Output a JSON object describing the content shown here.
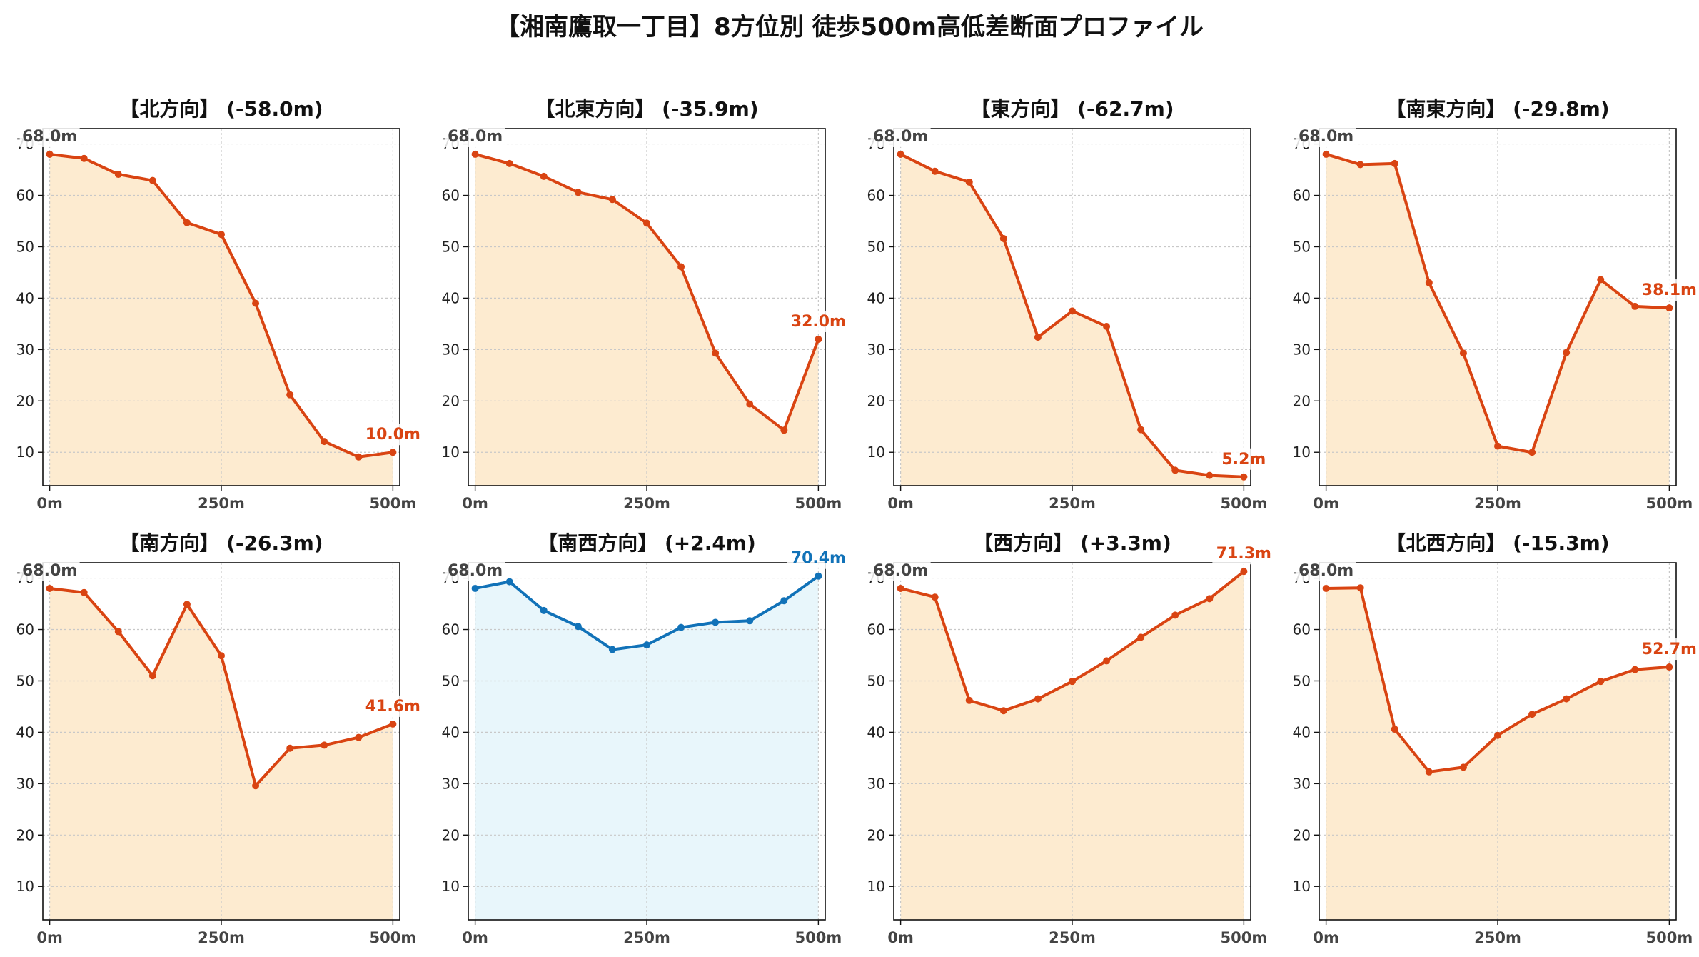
{
  "figure": {
    "title": "【湘南鷹取一丁目】8方位別 徒歩500m高低差断面プロファイル"
  },
  "colors": {
    "down": "#d94412",
    "down_fill": "#fdebd0",
    "up": "#1172b8",
    "up_fill": "#e8f6fb",
    "start_label": "#444444",
    "grid": "#c8c8c8"
  },
  "chart_data": [
    {
      "type": "area",
      "title": "【北方向】 (-58.0m)",
      "x": [
        0,
        50,
        100,
        150,
        200,
        250,
        300,
        350,
        400,
        450,
        500
      ],
      "y": [
        68.0,
        67.2,
        64.1,
        62.9,
        54.7,
        52.4,
        39.0,
        21.2,
        12.1,
        9.1,
        10.0
      ],
      "start_label": "68.0m",
      "end_label": "10.0m",
      "xlim": [
        -10,
        510
      ],
      "ylim": [
        3.5,
        73
      ],
      "xticks": [
        0,
        250,
        500
      ],
      "xtick_labels": [
        "0m",
        "250m",
        "500m"
      ],
      "yticks": [
        10,
        20,
        30,
        40,
        50,
        60,
        70
      ],
      "ytick_labels": [
        "10",
        "20",
        "30",
        "40",
        "50",
        "60",
        "70"
      ],
      "grid": true,
      "color_key": "down"
    },
    {
      "type": "area",
      "title": "【北東方向】 (-35.9m)",
      "x": [
        0,
        50,
        100,
        150,
        200,
        250,
        300,
        350,
        400,
        450,
        500
      ],
      "y": [
        68.0,
        66.2,
        63.7,
        60.6,
        59.2,
        54.6,
        46.1,
        29.3,
        19.4,
        14.3,
        32.0
      ],
      "start_label": "68.0m",
      "end_label": "32.0m",
      "xlim": [
        -10,
        510
      ],
      "ylim": [
        3.5,
        73
      ],
      "xticks": [
        0,
        250,
        500
      ],
      "xtick_labels": [
        "0m",
        "250m",
        "500m"
      ],
      "yticks": [
        10,
        20,
        30,
        40,
        50,
        60,
        70
      ],
      "ytick_labels": [
        "10",
        "20",
        "30",
        "40",
        "50",
        "60",
        "70"
      ],
      "grid": true,
      "color_key": "down"
    },
    {
      "type": "area",
      "title": "【東方向】 (-62.7m)",
      "x": [
        0,
        50,
        100,
        150,
        200,
        250,
        300,
        350,
        400,
        450,
        500
      ],
      "y": [
        68.0,
        64.7,
        62.6,
        51.6,
        32.4,
        37.5,
        34.5,
        14.4,
        6.5,
        5.5,
        5.2
      ],
      "start_label": "68.0m",
      "end_label": "5.2m",
      "xlim": [
        -10,
        510
      ],
      "ylim": [
        3.5,
        73
      ],
      "xticks": [
        0,
        250,
        500
      ],
      "xtick_labels": [
        "0m",
        "250m",
        "500m"
      ],
      "yticks": [
        10,
        20,
        30,
        40,
        50,
        60,
        70
      ],
      "ytick_labels": [
        "10",
        "20",
        "30",
        "40",
        "50",
        "60",
        "70"
      ],
      "grid": true,
      "color_key": "down"
    },
    {
      "type": "area",
      "title": "【南東方向】 (-29.8m)",
      "x": [
        0,
        50,
        100,
        150,
        200,
        250,
        300,
        350,
        400,
        450,
        500
      ],
      "y": [
        68.0,
        66.0,
        66.2,
        43.0,
        29.3,
        11.2,
        10.0,
        29.4,
        43.6,
        38.4,
        38.1
      ],
      "start_label": "68.0m",
      "end_label": "38.1m",
      "xlim": [
        -10,
        510
      ],
      "ylim": [
        3.5,
        73
      ],
      "xticks": [
        0,
        250,
        500
      ],
      "xtick_labels": [
        "0m",
        "250m",
        "500m"
      ],
      "yticks": [
        10,
        20,
        30,
        40,
        50,
        60,
        70
      ],
      "ytick_labels": [
        "10",
        "20",
        "30",
        "40",
        "50",
        "60",
        "70"
      ],
      "grid": true,
      "color_key": "down"
    },
    {
      "type": "area",
      "title": "【南方向】 (-26.3m)",
      "x": [
        0,
        50,
        100,
        150,
        200,
        250,
        300,
        350,
        400,
        450,
        500
      ],
      "y": [
        68.0,
        67.2,
        59.6,
        51.0,
        64.9,
        54.9,
        29.6,
        36.9,
        37.5,
        39.0,
        41.6
      ],
      "start_label": "68.0m",
      "end_label": "41.6m",
      "xlim": [
        -10,
        510
      ],
      "ylim": [
        3.5,
        73
      ],
      "xticks": [
        0,
        250,
        500
      ],
      "xtick_labels": [
        "0m",
        "250m",
        "500m"
      ],
      "yticks": [
        10,
        20,
        30,
        40,
        50,
        60,
        70
      ],
      "ytick_labels": [
        "10",
        "20",
        "30",
        "40",
        "50",
        "60",
        "70"
      ],
      "grid": true,
      "color_key": "down"
    },
    {
      "type": "area",
      "title": "【南西方向】 (+2.4m)",
      "x": [
        0,
        50,
        100,
        150,
        200,
        250,
        300,
        350,
        400,
        450,
        500
      ],
      "y": [
        68.0,
        69.3,
        63.7,
        60.6,
        56.1,
        57.0,
        60.4,
        61.4,
        61.7,
        65.6,
        70.4
      ],
      "start_label": "68.0m",
      "end_label": "70.4m",
      "xlim": [
        -10,
        510
      ],
      "ylim": [
        3.5,
        73
      ],
      "xticks": [
        0,
        250,
        500
      ],
      "xtick_labels": [
        "0m",
        "250m",
        "500m"
      ],
      "yticks": [
        10,
        20,
        30,
        40,
        50,
        60,
        70
      ],
      "ytick_labels": [
        "10",
        "20",
        "30",
        "40",
        "50",
        "60",
        "70"
      ],
      "grid": true,
      "color_key": "up"
    },
    {
      "type": "area",
      "title": "【西方向】 (+3.3m)",
      "x": [
        0,
        50,
        100,
        150,
        200,
        250,
        300,
        350,
        400,
        450,
        500
      ],
      "y": [
        68.0,
        66.3,
        46.2,
        44.2,
        46.5,
        49.9,
        53.9,
        58.5,
        62.8,
        66.0,
        71.3
      ],
      "start_label": "68.0m",
      "end_label": "71.3m",
      "xlim": [
        -10,
        510
      ],
      "ylim": [
        3.5,
        73
      ],
      "xticks": [
        0,
        250,
        500
      ],
      "xtick_labels": [
        "0m",
        "250m",
        "500m"
      ],
      "yticks": [
        10,
        20,
        30,
        40,
        50,
        60,
        70
      ],
      "ytick_labels": [
        "10",
        "20",
        "30",
        "40",
        "50",
        "60",
        "70"
      ],
      "grid": true,
      "color_key": "down"
    },
    {
      "type": "area",
      "title": "【北西方向】 (-15.3m)",
      "x": [
        0,
        50,
        100,
        150,
        200,
        250,
        300,
        350,
        400,
        450,
        500
      ],
      "y": [
        68.0,
        68.1,
        40.6,
        32.3,
        33.2,
        39.4,
        43.5,
        46.5,
        49.9,
        52.2,
        52.7
      ],
      "start_label": "68.0m",
      "end_label": "52.7m",
      "xlim": [
        -10,
        510
      ],
      "ylim": [
        3.5,
        73
      ],
      "xticks": [
        0,
        250,
        500
      ],
      "xtick_labels": [
        "0m",
        "250m",
        "500m"
      ],
      "yticks": [
        10,
        20,
        30,
        40,
        50,
        60,
        70
      ],
      "ytick_labels": [
        "10",
        "20",
        "30",
        "40",
        "50",
        "60",
        "70"
      ],
      "grid": true,
      "color_key": "down"
    }
  ]
}
